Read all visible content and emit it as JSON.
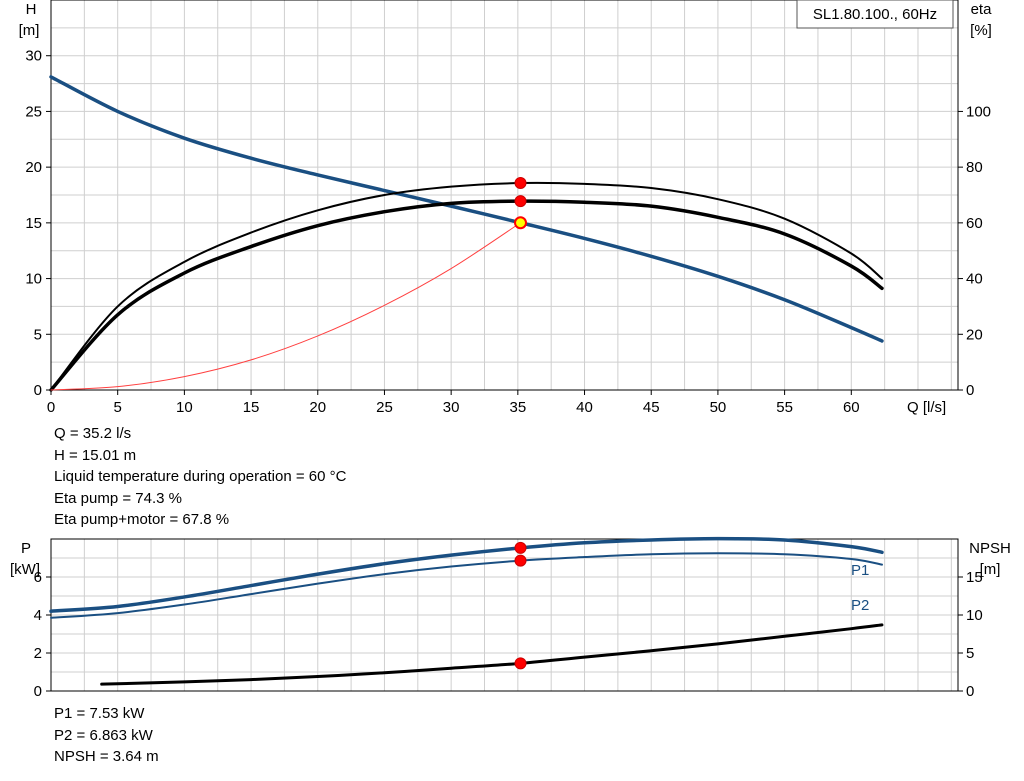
{
  "chart_data": [
    {
      "type": "line",
      "title": "SL1.80.100., 60Hz",
      "xlabel": "Q [l/s]",
      "ylabel_left": [
        "H",
        "[m]"
      ],
      "ylabel_right": [
        "eta",
        "[%]"
      ],
      "xlim": [
        0,
        68
      ],
      "ylim_left": [
        0,
        35
      ],
      "ylim_right": [
        0,
        140
      ],
      "x_ticks": [
        0,
        5,
        10,
        15,
        20,
        25,
        30,
        35,
        40,
        45,
        50,
        55,
        60
      ],
      "y_ticks_left": [
        0,
        5,
        10,
        15,
        20,
        25,
        30
      ],
      "y_ticks_right": [
        0,
        20,
        40,
        60,
        80,
        100
      ],
      "grid": true,
      "series": [
        {
          "axis": "left",
          "color": "#1a4f82",
          "x": [
            0,
            5,
            10,
            15,
            20,
            25,
            30,
            35.2,
            40,
            45,
            50,
            55,
            60,
            62.3
          ],
          "y": [
            28.1,
            25.0,
            22.6,
            20.8,
            19.3,
            17.9,
            16.5,
            15.01,
            13.6,
            12.0,
            10.2,
            8.1,
            5.6,
            4.4
          ]
        },
        {
          "axis": "right",
          "color": "#000000",
          "x": [
            0,
            5,
            10,
            15,
            20,
            25,
            30,
            35.2,
            40,
            45,
            50,
            55,
            60,
            62.3
          ],
          "y": [
            0,
            30,
            46,
            56.5,
            64.5,
            70,
            73,
            74.3,
            74,
            72.5,
            68.5,
            61.5,
            49,
            40
          ]
        },
        {
          "axis": "right",
          "color": "#000000",
          "x": [
            0,
            5,
            10,
            15,
            20,
            25,
            30,
            35.2,
            40,
            45,
            50,
            55,
            60,
            62.3
          ],
          "y": [
            0,
            27,
            42,
            51.5,
            59,
            64,
            67,
            67.8,
            67.4,
            66,
            62,
            56,
            44.5,
            36.5
          ]
        },
        {
          "axis": "left",
          "color": "#ff4040",
          "x": [
            0,
            5,
            10,
            15,
            20,
            25,
            30,
            35.2
          ],
          "y": [
            0,
            0.3,
            1.2,
            2.7,
            4.85,
            7.6,
            10.9,
            15.01
          ]
        }
      ],
      "markers": [
        {
          "axis": "right",
          "x": 35.2,
          "y": 74.3,
          "color": "#ff0000"
        },
        {
          "axis": "right",
          "x": 35.2,
          "y": 67.8,
          "color": "#ff0000"
        },
        {
          "axis": "left",
          "x": 35.2,
          "y": 15.01,
          "color": "#ffff00",
          "stroke": "#ff0000"
        }
      ]
    },
    {
      "type": "line",
      "ylabel_left": [
        "P",
        "[kW]"
      ],
      "ylabel_right": [
        "NPSH",
        "[m]"
      ],
      "xlim": [
        0,
        68
      ],
      "ylim_left": [
        0,
        8
      ],
      "ylim_right": [
        0,
        20
      ],
      "y_ticks_left": [
        0,
        2,
        4,
        6
      ],
      "y_ticks_right": [
        0,
        5,
        10,
        15
      ],
      "grid": true,
      "series": [
        {
          "name": "P1",
          "axis": "left",
          "color": "#1a4f82",
          "x": [
            0,
            5,
            10,
            15,
            20,
            25,
            30,
            35.2,
            40,
            45,
            50,
            55,
            60,
            62.3
          ],
          "y": [
            4.2,
            4.45,
            4.95,
            5.55,
            6.15,
            6.7,
            7.15,
            7.53,
            7.8,
            7.95,
            8.02,
            7.95,
            7.6,
            7.3
          ]
        },
        {
          "name": "P2",
          "axis": "left",
          "color": "#1a4f82",
          "x": [
            0,
            5,
            10,
            15,
            20,
            25,
            30,
            35.2,
            40,
            45,
            50,
            55,
            60,
            62.3
          ],
          "y": [
            3.85,
            4.1,
            4.55,
            5.1,
            5.65,
            6.15,
            6.55,
            6.863,
            7.05,
            7.2,
            7.25,
            7.2,
            6.95,
            6.65
          ]
        },
        {
          "axis": "right",
          "color": "#000000",
          "x": [
            3.8,
            10,
            15,
            20,
            25,
            30,
            35.2,
            40,
            45,
            50,
            55,
            60,
            62.3
          ],
          "y": [
            0.9,
            1.2,
            1.5,
            1.9,
            2.4,
            3.0,
            3.64,
            4.45,
            5.3,
            6.2,
            7.2,
            8.2,
            8.7
          ]
        }
      ],
      "markers": [
        {
          "axis": "left",
          "x": 35.2,
          "y": 7.53,
          "color": "#ff0000"
        },
        {
          "axis": "left",
          "x": 35.2,
          "y": 6.863,
          "color": "#ff0000"
        },
        {
          "axis": "right",
          "x": 35.2,
          "y": 3.64,
          "color": "#ff0000"
        }
      ]
    }
  ],
  "info_top": [
    "Q = 35.2 l/s",
    "H = 15.01 m",
    "Liquid temperature during operation = 60 °C",
    "Eta pump = 74.3 %",
    "Eta pump+motor = 67.8 %"
  ],
  "info_bottom": [
    "P1 = 7.53 kW",
    "P2 = 6.863 kW",
    "NPSH = 3.64 m"
  ]
}
